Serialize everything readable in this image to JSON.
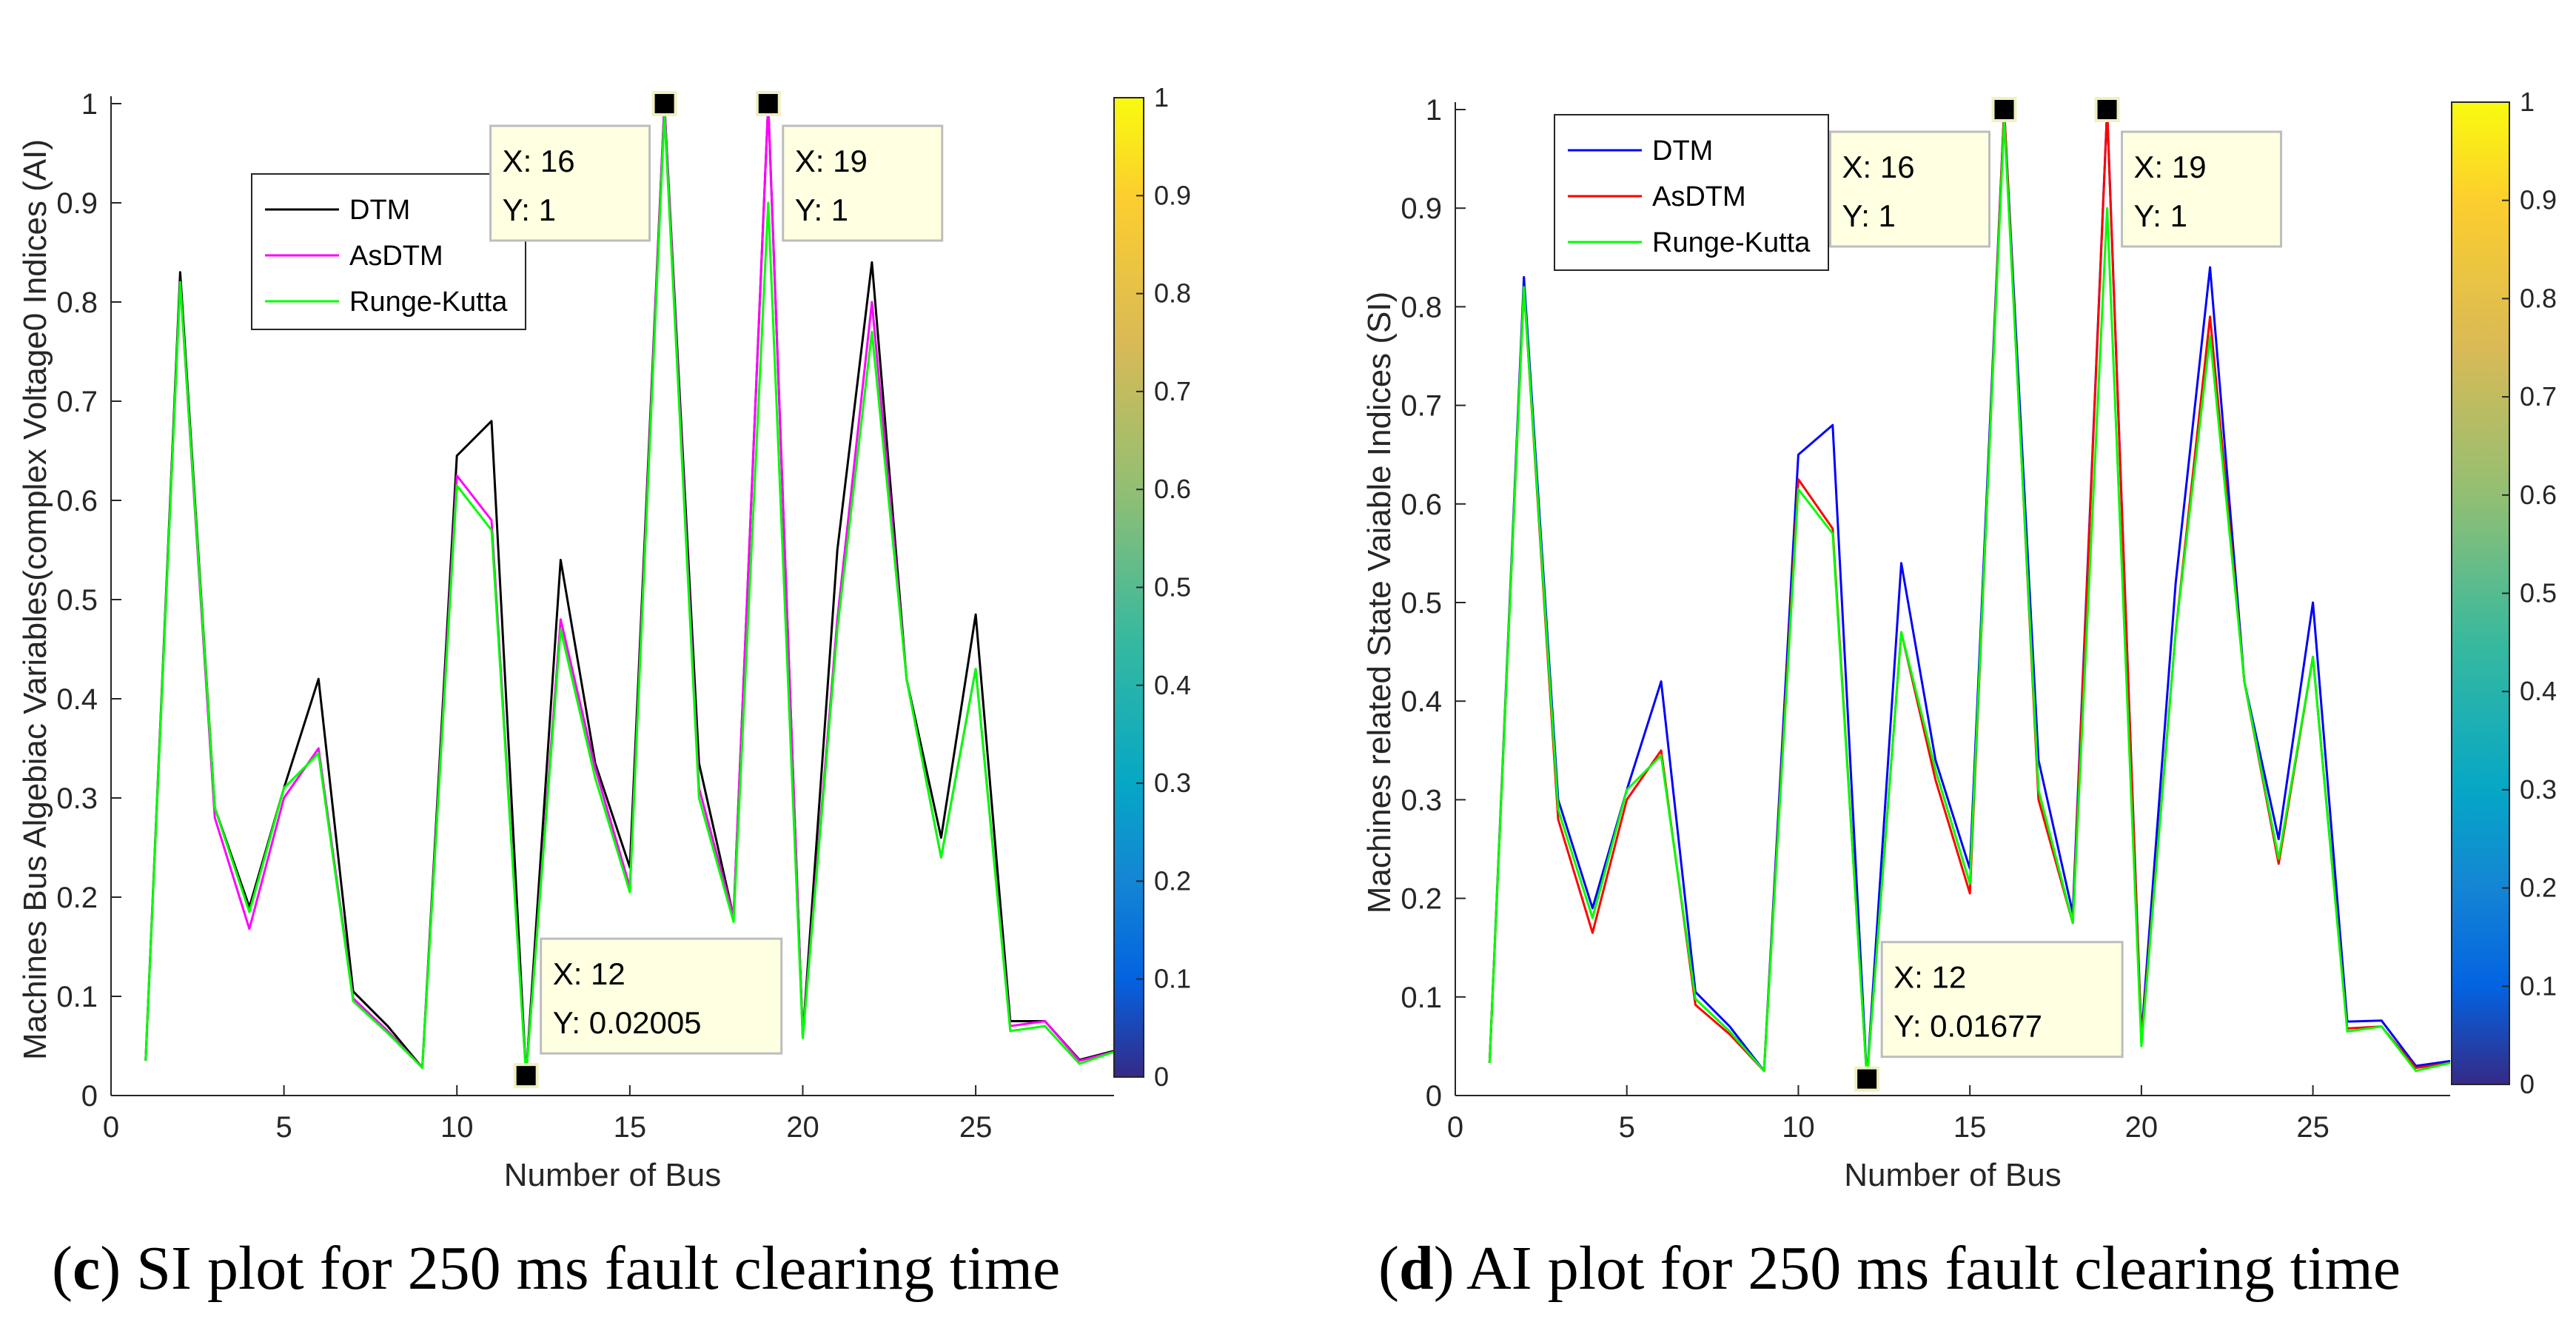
{
  "figure": {
    "colorbar_ticks": [
      0,
      0.1,
      0.2,
      0.3,
      0.4,
      0.5,
      0.6,
      0.7,
      0.8,
      0.9,
      1
    ]
  },
  "chart_data": [
    {
      "id": "c",
      "type": "line",
      "xlabel": "Number of Bus",
      "ylabel": "Machines Bus Algebiac Variables(complex Voltage0 Indices (AI)",
      "xlim": [
        0,
        29
      ],
      "ylim": [
        0,
        1
      ],
      "xticks": [
        0,
        5,
        10,
        15,
        20,
        25
      ],
      "yticks": [
        0,
        0.1,
        0.2,
        0.3,
        0.4,
        0.5,
        0.6,
        0.7,
        0.8,
        0.9,
        1
      ],
      "x": [
        1,
        2,
        3,
        4,
        5,
        6,
        7,
        8,
        9,
        10,
        11,
        12,
        13,
        14,
        15,
        16,
        17,
        18,
        19,
        20,
        21,
        22,
        23,
        24,
        25,
        26,
        27,
        28,
        29
      ],
      "series": [
        {
          "name": "DTM",
          "color": "#000000",
          "values": [
            0.035,
            0.83,
            0.29,
            0.19,
            0.31,
            0.42,
            0.105,
            0.07,
            0.028,
            0.645,
            0.68,
            0.02005,
            0.54,
            0.335,
            0.23,
            1.0,
            0.335,
            0.18,
            1.0,
            0.06,
            0.55,
            0.84,
            0.42,
            0.26,
            0.485,
            0.075,
            0.075,
            0.036,
            0.045
          ]
        },
        {
          "name": "AsDTM",
          "color": "#ff00ff",
          "values": [
            0.035,
            0.82,
            0.28,
            0.168,
            0.3,
            0.35,
            0.098,
            0.065,
            0.028,
            0.625,
            0.58,
            0.02005,
            0.48,
            0.33,
            0.21,
            1.0,
            0.31,
            0.18,
            1.0,
            0.06,
            0.48,
            0.8,
            0.42,
            0.24,
            0.43,
            0.07,
            0.075,
            0.035,
            0.044
          ]
        },
        {
          "name": "Runge-Kutta",
          "color": "#00ff00",
          "values": [
            0.035,
            0.82,
            0.29,
            0.185,
            0.31,
            0.345,
            0.095,
            0.063,
            0.028,
            0.615,
            0.57,
            0.02005,
            0.47,
            0.32,
            0.205,
            0.99,
            0.3,
            0.175,
            0.9,
            0.058,
            0.47,
            0.77,
            0.42,
            0.24,
            0.43,
            0.065,
            0.07,
            0.032,
            0.044
          ]
        }
      ],
      "legend_position": "upper-left",
      "datatips": [
        {
          "x": 16,
          "y": 1,
          "xtext": "X: 16",
          "ytext": "Y: 1",
          "box_side": "left",
          "box_above": false
        },
        {
          "x": 19,
          "y": 1,
          "xtext": "X: 19",
          "ytext": "Y: 1",
          "box_side": "right",
          "box_above": false
        },
        {
          "x": 12,
          "y": 0.02005,
          "xtext": "X: 12",
          "ytext": "Y: 0.02005",
          "box_side": "right",
          "box_above": true
        }
      ],
      "caption": {
        "letter": "c",
        "text": " SI plot for 250 ms fault clearing time"
      }
    },
    {
      "id": "d",
      "type": "line",
      "xlabel": "Number of Bus",
      "ylabel": "Machines related State Vaiable Indices (SI)",
      "xlim": [
        0,
        29
      ],
      "ylim": [
        0,
        1
      ],
      "xticks": [
        0,
        5,
        10,
        15,
        20,
        25
      ],
      "yticks": [
        0,
        0.1,
        0.2,
        0.3,
        0.4,
        0.5,
        0.6,
        0.7,
        0.8,
        0.9,
        1
      ],
      "x": [
        1,
        2,
        3,
        4,
        5,
        6,
        7,
        8,
        9,
        10,
        11,
        12,
        13,
        14,
        15,
        16,
        17,
        18,
        19,
        20,
        21,
        22,
        23,
        24,
        25,
        26,
        27,
        28,
        29
      ],
      "series": [
        {
          "name": "DTM",
          "color": "#0000ff",
          "values": [
            0.033,
            0.83,
            0.3,
            0.19,
            0.31,
            0.42,
            0.105,
            0.07,
            0.025,
            0.65,
            0.68,
            0.01677,
            0.54,
            0.34,
            0.23,
            1.0,
            0.34,
            0.185,
            1.0,
            0.06,
            0.52,
            0.84,
            0.42,
            0.26,
            0.5,
            0.075,
            0.076,
            0.03,
            0.035
          ]
        },
        {
          "name": "AsDTM",
          "color": "#ff0000",
          "values": [
            0.033,
            0.82,
            0.28,
            0.165,
            0.3,
            0.35,
            0.092,
            0.062,
            0.025,
            0.625,
            0.575,
            0.01677,
            0.47,
            0.32,
            0.205,
            1.0,
            0.3,
            0.175,
            1.0,
            0.055,
            0.47,
            0.79,
            0.42,
            0.235,
            0.445,
            0.068,
            0.07,
            0.028,
            0.033
          ]
        },
        {
          "name": "Runge-Kutta",
          "color": "#00ff00",
          "values": [
            0.033,
            0.82,
            0.29,
            0.18,
            0.31,
            0.345,
            0.098,
            0.065,
            0.025,
            0.615,
            0.57,
            0.01677,
            0.47,
            0.33,
            0.215,
            0.99,
            0.31,
            0.175,
            0.9,
            0.05,
            0.47,
            0.77,
            0.42,
            0.24,
            0.445,
            0.065,
            0.07,
            0.025,
            0.033
          ]
        }
      ],
      "legend_position": "upper-left",
      "datatips": [
        {
          "x": 16,
          "y": 1,
          "xtext": "X: 16",
          "ytext": "Y: 1",
          "box_side": "left",
          "box_above": false
        },
        {
          "x": 19,
          "y": 1,
          "xtext": "X: 19",
          "ytext": "Y: 1",
          "box_side": "right",
          "box_above": false
        },
        {
          "x": 12,
          "y": 0.01677,
          "xtext": "X: 12",
          "ytext": "Y: 0.01677",
          "box_side": "right",
          "box_above": true
        }
      ],
      "caption": {
        "letter": "d",
        "text": " AI plot for 250 ms fault clearing time"
      }
    }
  ]
}
